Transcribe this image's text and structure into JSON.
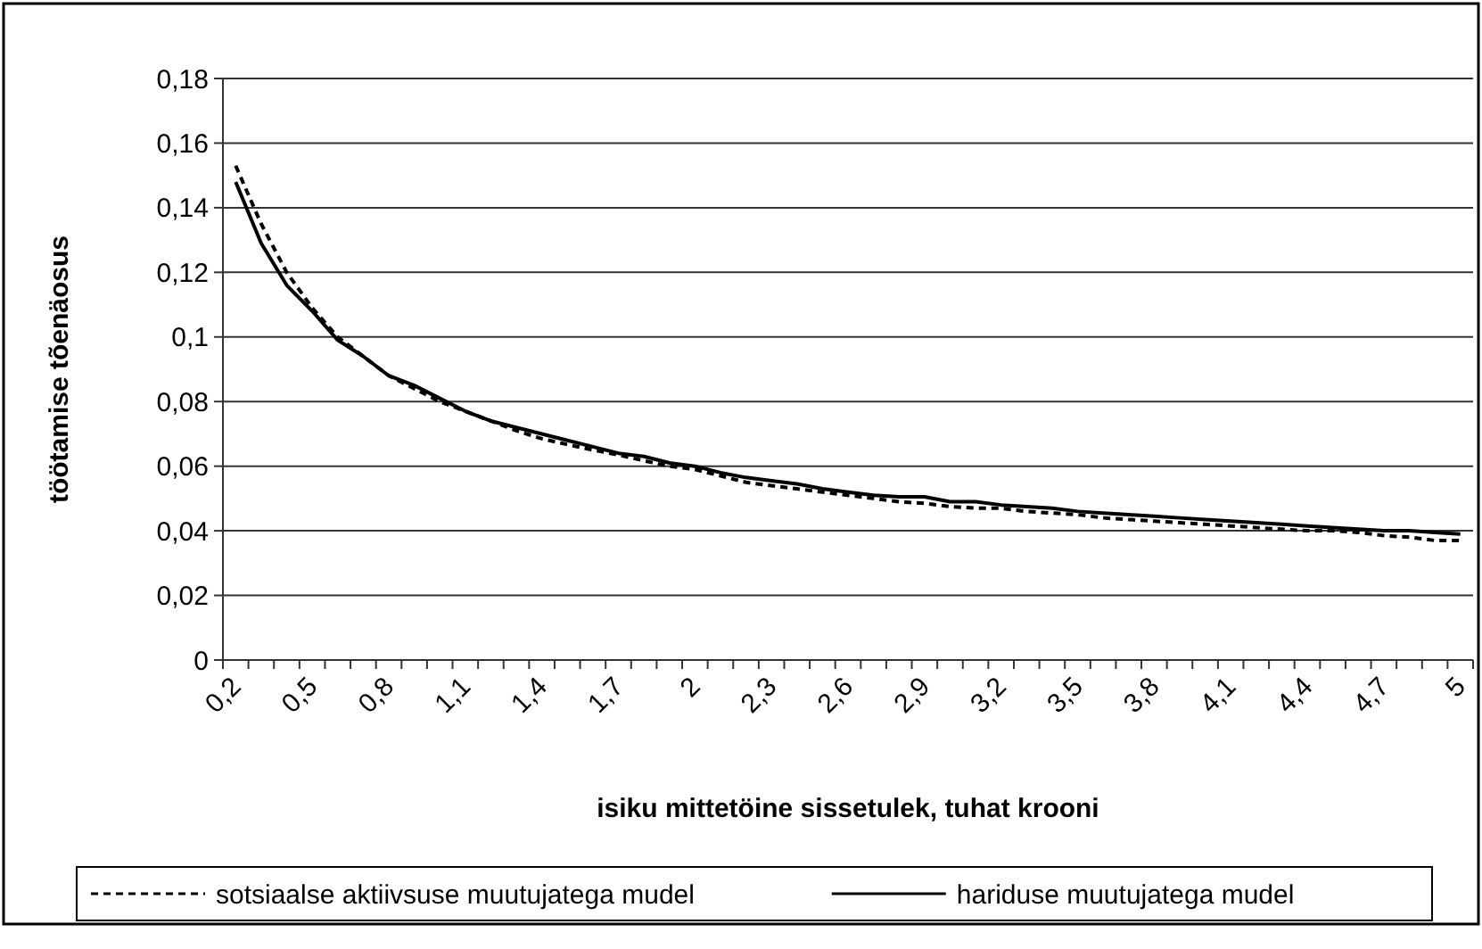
{
  "chart_data": {
    "type": "line",
    "xlabel": "isiku mittetöine sissetulek, tuhat krooni",
    "ylabel": "töötamise tõenäosus",
    "categories": [
      "0,2",
      null,
      null,
      "0,5",
      null,
      null,
      "0,8",
      null,
      null,
      "1,1",
      null,
      null,
      "1,4",
      null,
      null,
      "1,7",
      null,
      null,
      "2",
      null,
      null,
      "2,3",
      null,
      null,
      "2,6",
      null,
      null,
      "2,9",
      null,
      null,
      "3,2",
      null,
      null,
      "3,5",
      null,
      null,
      "3,8",
      null,
      null,
      "4,1",
      null,
      null,
      "4,4",
      null,
      null,
      "4,7",
      null,
      null,
      "5"
    ],
    "series": [
      {
        "name": "sotsiaalse aktiivsuse muutujatega mudel",
        "color": "#000000",
        "line_style": "dashed",
        "values": [
          0.153,
          0.135,
          0.12,
          0.109,
          0.1,
          0.094,
          0.088,
          0.084,
          0.08,
          0.077,
          0.074,
          0.071,
          0.0685,
          0.0667,
          0.065,
          0.0635,
          0.0617,
          0.06,
          0.059,
          0.057,
          0.055,
          0.054,
          0.053,
          0.052,
          0.051,
          0.05,
          0.049,
          0.0485,
          0.0475,
          0.047,
          0.047,
          0.046,
          0.0455,
          0.045,
          0.044,
          0.0435,
          0.043,
          0.0425,
          0.042,
          0.0415,
          0.041,
          0.0405,
          0.04,
          0.04,
          0.0395,
          0.0385,
          0.038,
          0.037,
          0.037
        ]
      },
      {
        "name": "hariduse muutujatega mudel",
        "color": "#000000",
        "line_style": "solid",
        "values": [
          0.148,
          0.129,
          0.116,
          0.108,
          0.099,
          0.094,
          0.088,
          0.085,
          0.081,
          0.077,
          0.074,
          0.072,
          0.07,
          0.068,
          0.066,
          0.064,
          0.063,
          0.061,
          0.06,
          0.058,
          0.0565,
          0.0555,
          0.0545,
          0.053,
          0.052,
          0.051,
          0.0505,
          0.0505,
          0.049,
          0.049,
          0.048,
          0.0475,
          0.047,
          0.046,
          0.0455,
          0.045,
          0.0445,
          0.044,
          0.0435,
          0.043,
          0.0425,
          0.042,
          0.0415,
          0.041,
          0.0405,
          0.04,
          0.04,
          0.0395,
          0.039
        ]
      }
    ],
    "ylim": [
      0,
      0.18
    ],
    "yticks": [
      {
        "value": 0,
        "label": "0"
      },
      {
        "value": 0.02,
        "label": "0,02"
      },
      {
        "value": 0.04,
        "label": "0,04"
      },
      {
        "value": 0.06,
        "label": "0,06"
      },
      {
        "value": 0.08,
        "label": "0,08"
      },
      {
        "value": 0.1,
        "label": "0,1"
      },
      {
        "value": 0.12,
        "label": "0,12"
      },
      {
        "value": 0.14,
        "label": "0,14"
      },
      {
        "value": 0.16,
        "label": "0,16"
      },
      {
        "value": 0.18,
        "label": "0,18"
      }
    ],
    "grid": "y",
    "legend": "bottom",
    "marker": "none"
  }
}
